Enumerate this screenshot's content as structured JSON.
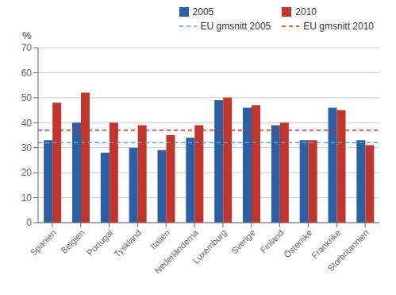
{
  "chart_data": {
    "type": "bar",
    "ylabel": "%",
    "categories": [
      "Spanien",
      "Belgien",
      "Portugal",
      "Tyskland",
      "Italien",
      "Nederländerna",
      "Luxemburg",
      "Sverige",
      "Finland",
      "Österrike",
      "Frankrike",
      "Storbritannien"
    ],
    "series": [
      {
        "name": "2005",
        "color": "#2E5FA3",
        "values": [
          33,
          40,
          28,
          30,
          29,
          34,
          49,
          46,
          39,
          33,
          46,
          33
        ]
      },
      {
        "name": "2010",
        "color": "#C0362C",
        "values": [
          48,
          52,
          40,
          39,
          35,
          39,
          50,
          47,
          40,
          33,
          45,
          31
        ]
      }
    ],
    "reference_lines": [
      {
        "name": "EU gmsnitt 2005",
        "value": 32,
        "color": "#4FA8D5",
        "line_style": "dashed"
      },
      {
        "name": "EU gmsnitt 2010",
        "value": 37,
        "color": "#C0362C",
        "line_style": "dashed"
      }
    ],
    "ylim": [
      0,
      70
    ],
    "yticks": [
      0,
      10,
      20,
      30,
      40,
      50,
      60,
      70
    ],
    "grid": true,
    "legend": "top"
  }
}
